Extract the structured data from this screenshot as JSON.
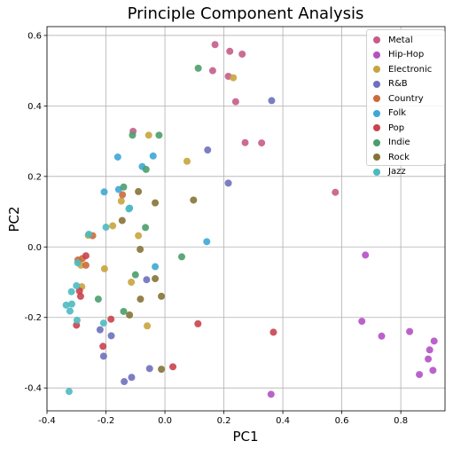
{
  "chart_data": {
    "type": "scatter",
    "title": "Principle Component Analysis",
    "xlabel": "PC1",
    "ylabel": "PC2",
    "xlim": [
      -0.4,
      0.95
    ],
    "ylim": [
      -0.465,
      0.625
    ],
    "xticks": [
      "-0.4",
      "-0.2",
      "0.0",
      "0.2",
      "0.4",
      "0.6",
      "0.8"
    ],
    "xtick_values": [
      -0.4,
      -0.2,
      0.0,
      0.2,
      0.4,
      0.6,
      0.8
    ],
    "yticks": [
      "-0.4",
      "-0.2",
      "0.0",
      "0.2",
      "0.4",
      "0.6"
    ],
    "ytick_values": [
      -0.4,
      -0.2,
      0.0,
      0.2,
      0.4,
      0.6
    ],
    "grid": true,
    "legend_position": "top-right",
    "series": [
      {
        "name": "Metal",
        "color": "#c45d89",
        "points": [
          [
            0.17,
            0.574
          ],
          [
            0.22,
            0.555
          ],
          [
            0.262,
            0.547
          ],
          [
            0.162,
            0.5
          ],
          [
            0.215,
            0.484
          ],
          [
            0.24,
            0.412
          ],
          [
            0.272,
            0.296
          ],
          [
            0.328,
            0.295
          ],
          [
            0.578,
            0.155
          ],
          [
            -0.108,
            0.328
          ]
        ]
      },
      {
        "name": "Hip-Hop",
        "color": "#b451c4",
        "points": [
          [
            0.68,
            -0.023
          ],
          [
            0.668,
            -0.211
          ],
          [
            0.735,
            -0.253
          ],
          [
            0.83,
            -0.24
          ],
          [
            0.913,
            -0.267
          ],
          [
            0.898,
            -0.292
          ],
          [
            0.893,
            -0.318
          ],
          [
            0.909,
            -0.35
          ],
          [
            0.863,
            -0.362
          ],
          [
            0.36,
            -0.418
          ]
        ]
      },
      {
        "name": "Electronic",
        "color": "#c8a43d",
        "points": [
          [
            0.232,
            0.48
          ],
          [
            -0.055,
            0.317
          ],
          [
            0.075,
            0.243
          ],
          [
            -0.148,
            0.13
          ],
          [
            -0.177,
            0.06
          ],
          [
            -0.09,
            0.032
          ],
          [
            -0.26,
            0.033
          ],
          [
            -0.285,
            -0.052
          ],
          [
            -0.205,
            -0.062
          ],
          [
            -0.282,
            -0.113
          ],
          [
            -0.114,
            -0.1
          ],
          [
            -0.06,
            -0.224
          ]
        ]
      },
      {
        "name": "R&B",
        "color": "#6e70bd",
        "points": [
          [
            0.362,
            0.415
          ],
          [
            0.145,
            0.275
          ],
          [
            0.215,
            0.181
          ],
          [
            -0.062,
            -0.093
          ],
          [
            -0.22,
            -0.235
          ],
          [
            -0.182,
            -0.252
          ],
          [
            -0.208,
            -0.31
          ],
          [
            -0.113,
            -0.37
          ],
          [
            -0.138,
            -0.382
          ],
          [
            -0.052,
            -0.345
          ]
        ]
      },
      {
        "name": "Country",
        "color": "#cc6a3b",
        "points": [
          [
            -0.144,
            0.148
          ],
          [
            -0.245,
            0.032
          ],
          [
            -0.295,
            -0.037
          ],
          [
            -0.28,
            -0.033
          ],
          [
            -0.268,
            -0.052
          ]
        ]
      },
      {
        "name": "Folk",
        "color": "#3ea7d6",
        "points": [
          [
            -0.04,
            0.258
          ],
          [
            -0.077,
            0.228
          ],
          [
            -0.16,
            0.255
          ],
          [
            -0.157,
            0.163
          ],
          [
            -0.206,
            0.156
          ],
          [
            -0.12,
            0.11
          ],
          [
            0.142,
            0.015
          ],
          [
            -0.033,
            -0.056
          ]
        ]
      },
      {
        "name": "Pop",
        "color": "#c9434e",
        "points": [
          [
            -0.268,
            -0.025
          ],
          [
            -0.29,
            -0.125
          ],
          [
            -0.286,
            -0.14
          ],
          [
            -0.183,
            -0.205
          ],
          [
            -0.3,
            -0.222
          ],
          [
            -0.21,
            -0.282
          ],
          [
            0.112,
            -0.218
          ],
          [
            0.368,
            -0.242
          ],
          [
            0.027,
            -0.34
          ]
        ]
      },
      {
        "name": "Indie",
        "color": "#4a9e6b",
        "points": [
          [
            0.113,
            0.507
          ],
          [
            -0.02,
            0.317
          ],
          [
            -0.11,
            0.317
          ],
          [
            -0.064,
            0.22
          ],
          [
            -0.14,
            0.17
          ],
          [
            -0.066,
            0.055
          ],
          [
            0.057,
            -0.028
          ],
          [
            -0.1,
            -0.079
          ],
          [
            -0.226,
            -0.148
          ],
          [
            -0.14,
            -0.183
          ]
        ]
      },
      {
        "name": "Rock",
        "color": "#857336",
        "points": [
          [
            0.097,
            0.133
          ],
          [
            -0.09,
            0.157
          ],
          [
            -0.033,
            0.125
          ],
          [
            -0.145,
            0.075
          ],
          [
            -0.084,
            -0.007
          ],
          [
            -0.033,
            -0.09
          ],
          [
            -0.012,
            -0.14
          ],
          [
            -0.083,
            -0.148
          ],
          [
            -0.12,
            -0.193
          ],
          [
            -0.012,
            -0.347
          ]
        ]
      },
      {
        "name": "Jazz",
        "color": "#4cbac0",
        "points": [
          [
            -0.122,
            0.108
          ],
          [
            -0.2,
            0.056
          ],
          [
            -0.258,
            0.036
          ],
          [
            -0.296,
            -0.045
          ],
          [
            -0.3,
            -0.11
          ],
          [
            -0.317,
            -0.127
          ],
          [
            -0.335,
            -0.165
          ],
          [
            -0.316,
            -0.162
          ],
          [
            -0.322,
            -0.182
          ],
          [
            -0.298,
            -0.208
          ],
          [
            -0.208,
            -0.216
          ],
          [
            -0.325,
            -0.41
          ]
        ]
      }
    ]
  }
}
